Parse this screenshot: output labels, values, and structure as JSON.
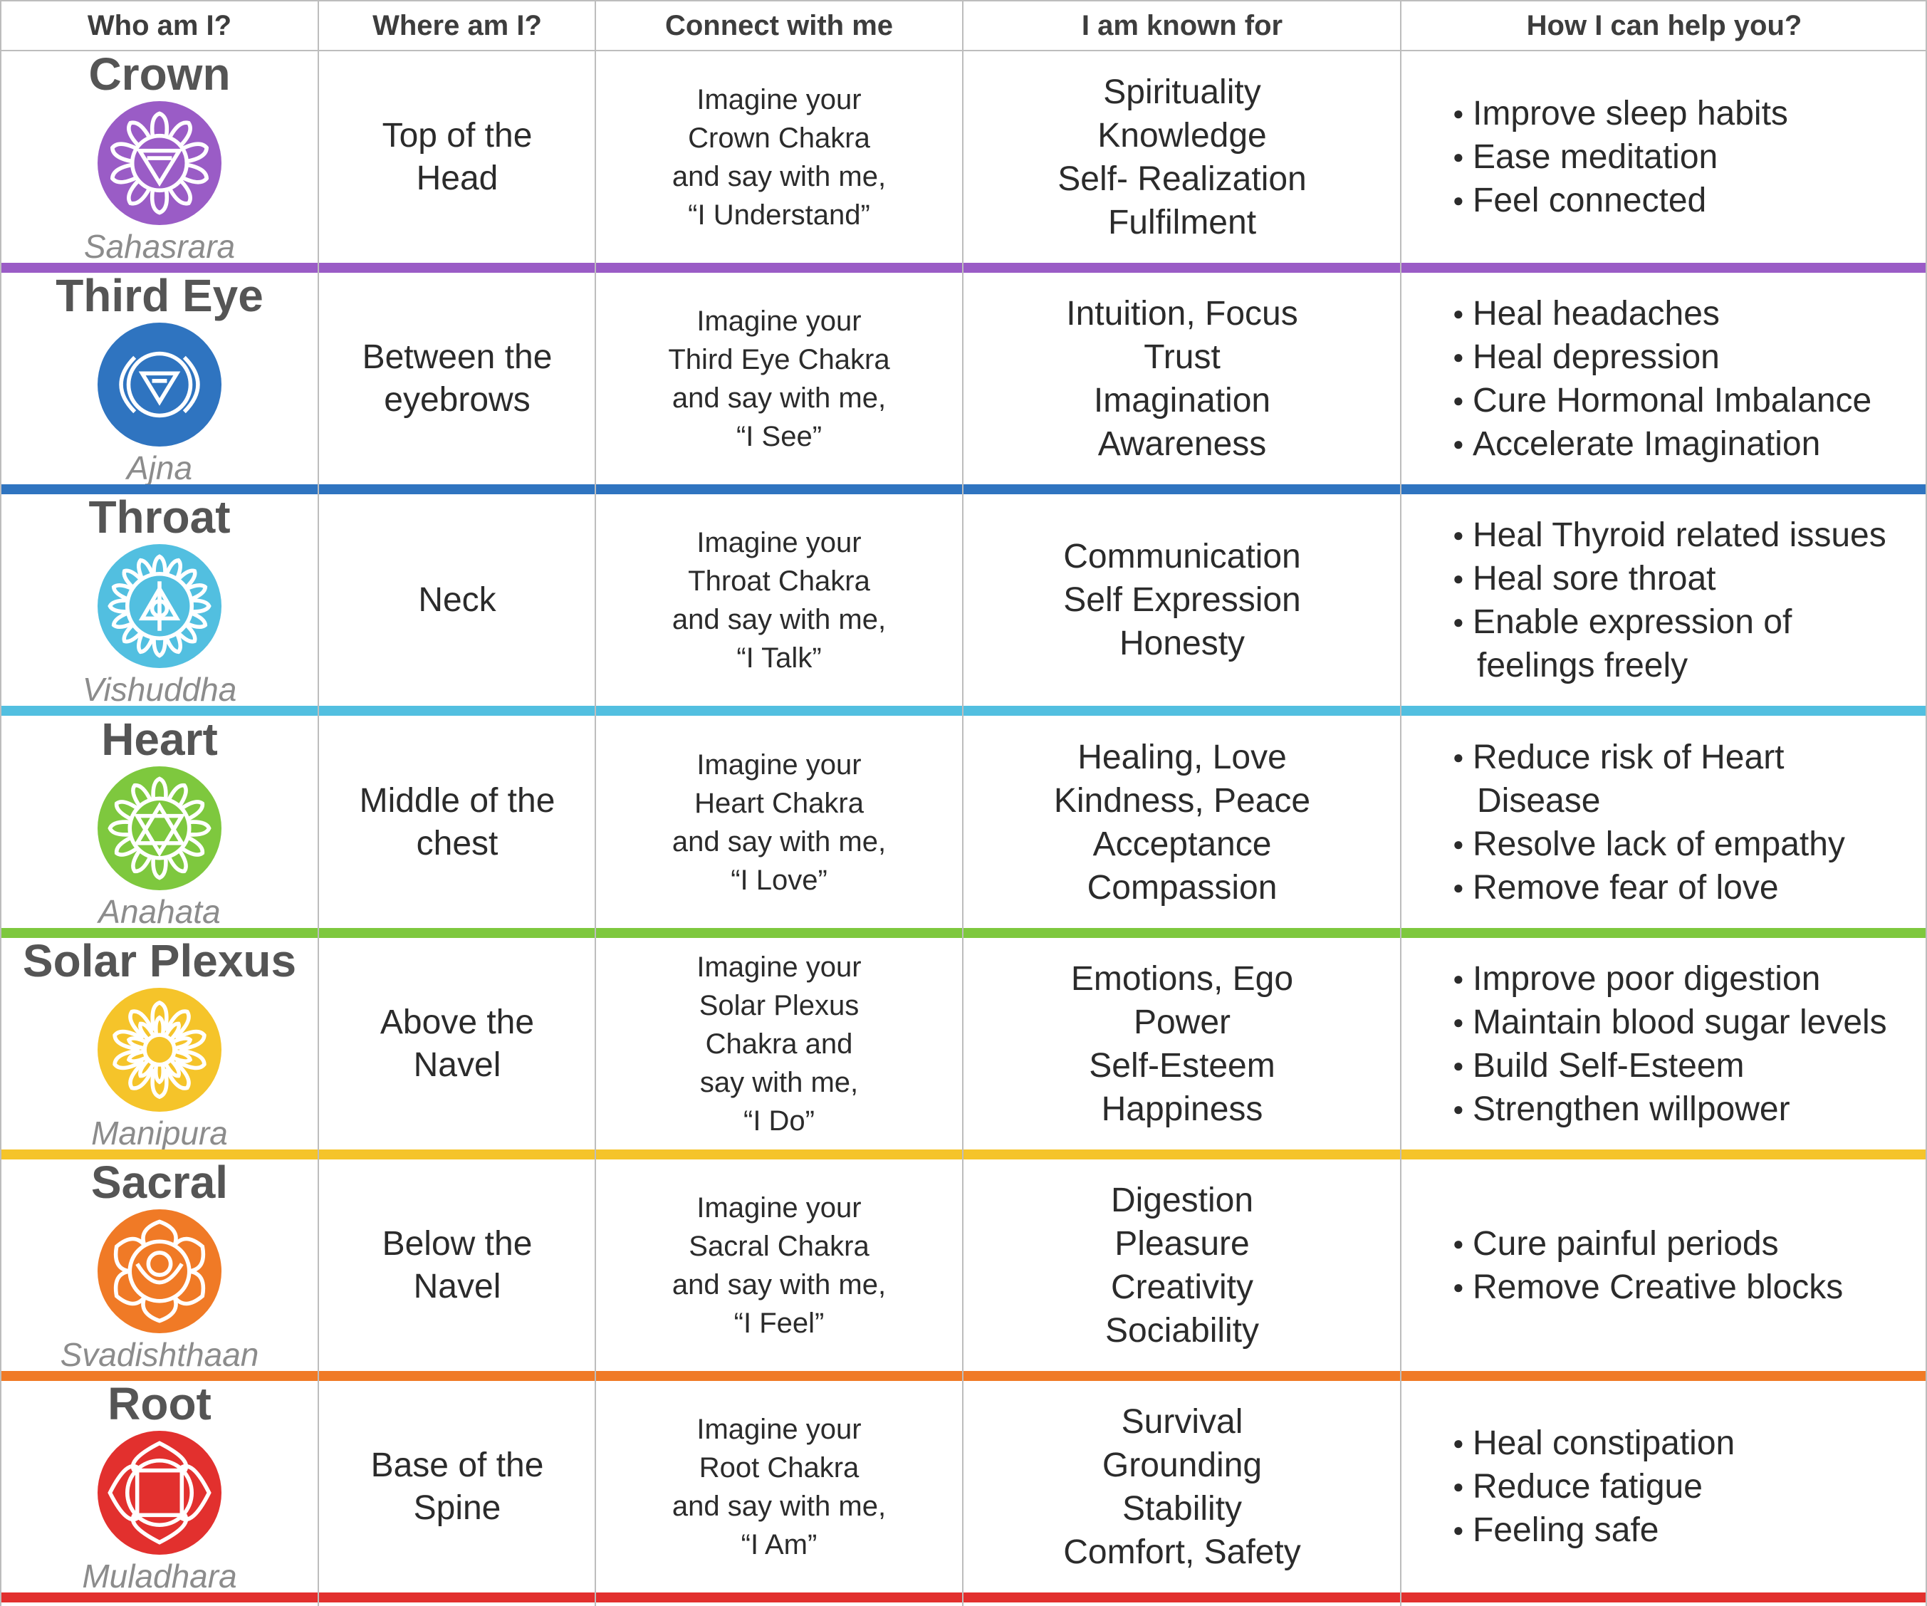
{
  "headers": {
    "who": "Who am I?",
    "where": "Where am I?",
    "connect": "Connect with me",
    "known": "I am known for",
    "help": "How I can help you?"
  },
  "chakras": [
    {
      "name": "Crown",
      "sanskrit": "Sahasrara",
      "icon": "crown-chakra-icon",
      "color": "#9a5cc6",
      "where": [
        "Top of the",
        "Head"
      ],
      "connect": [
        "Imagine your",
        "Crown Chakra",
        "and say with me,",
        "“I Understand”"
      ],
      "known": [
        "Spirituality",
        "Knowledge",
        "Self- Realization",
        "Fulfilment"
      ],
      "help": [
        {
          "text": "Improve sleep habits"
        },
        {
          "text": "Ease meditation"
        },
        {
          "text": "Feel connected"
        }
      ]
    },
    {
      "name": "Third Eye",
      "sanskrit": "Ajna",
      "icon": "third-eye-chakra-icon",
      "color": "#2f74c0",
      "where": [
        "Between the",
        "eyebrows"
      ],
      "connect": [
        "Imagine your",
        "Third Eye Chakra",
        "and say with me,",
        "“I See”"
      ],
      "known": [
        "Intuition, Focus",
        "Trust",
        "Imagination",
        "Awareness"
      ],
      "help": [
        {
          "text": "Heal headaches"
        },
        {
          "text": "Heal depression"
        },
        {
          "text": "Cure Hormonal Imbalance"
        },
        {
          "text": "Accelerate Imagination"
        }
      ]
    },
    {
      "name": "Throat",
      "sanskrit": "Vishuddha",
      "icon": "throat-chakra-icon",
      "color": "#52bfe0",
      "where": [
        "Neck"
      ],
      "connect": [
        "Imagine your",
        "Throat Chakra",
        "and say with me,",
        "“I Talk”"
      ],
      "known": [
        "Communication",
        "Self Expression",
        "Honesty"
      ],
      "help": [
        {
          "text": "Heal Thyroid related issues"
        },
        {
          "text": "Heal sore throat"
        },
        {
          "text": "Enable expression of",
          "cont": "feelings freely"
        }
      ]
    },
    {
      "name": "Heart",
      "sanskrit": "Anahata",
      "icon": "heart-chakra-icon",
      "color": "#7ec83e",
      "where": [
        "Middle of the",
        "chest"
      ],
      "connect": [
        "Imagine your",
        "Heart Chakra",
        "and say with me,",
        "“I Love”"
      ],
      "known": [
        "Healing, Love",
        "Kindness, Peace",
        "Acceptance",
        "Compassion"
      ],
      "help": [
        {
          "text": "Reduce risk of Heart",
          "cont": "Disease"
        },
        {
          "text": "Resolve lack of empathy"
        },
        {
          "text": "Remove fear of love"
        }
      ]
    },
    {
      "name": "Solar Plexus",
      "sanskrit": "Manipura",
      "icon": "solar-plexus-chakra-icon",
      "color": "#f5c42a",
      "where": [
        "Above the",
        "Navel"
      ],
      "connect": [
        "Imagine your",
        "Solar Plexus",
        "Chakra and",
        "say with me,",
        "“I Do”"
      ],
      "known": [
        "Emotions, Ego",
        "Power",
        "Self-Esteem",
        "Happiness"
      ],
      "help": [
        {
          "text": "Improve poor digestion"
        },
        {
          "text": "Maintain blood sugar levels"
        },
        {
          "text": "Build Self-Esteem"
        },
        {
          "text": "Strengthen willpower"
        }
      ]
    },
    {
      "name": "Sacral",
      "sanskrit": "Svadishthaan",
      "icon": "sacral-chakra-icon",
      "color": "#f07a26",
      "where": [
        "Below the",
        "Navel"
      ],
      "connect": [
        "Imagine your",
        "Sacral Chakra",
        "and say with me,",
        "“I Feel”"
      ],
      "known": [
        "Digestion",
        "Pleasure",
        "Creativity",
        "Sociability"
      ],
      "help": [
        {
          "text": "Cure painful periods"
        },
        {
          "text": "Remove Creative blocks"
        }
      ]
    },
    {
      "name": "Root",
      "sanskrit": "Muladhara",
      "icon": "root-chakra-icon",
      "color": "#e2302e",
      "where": [
        "Base of the",
        "Spine"
      ],
      "connect": [
        "Imagine your",
        "Root Chakra",
        "and say with me,",
        "“I Am”"
      ],
      "known": [
        "Survival",
        "Grounding",
        "Stability",
        "Comfort, Safety"
      ],
      "help": [
        {
          "text": "Heal constipation"
        },
        {
          "text": "Reduce fatigue"
        },
        {
          "text": "Feeling safe"
        }
      ]
    }
  ]
}
